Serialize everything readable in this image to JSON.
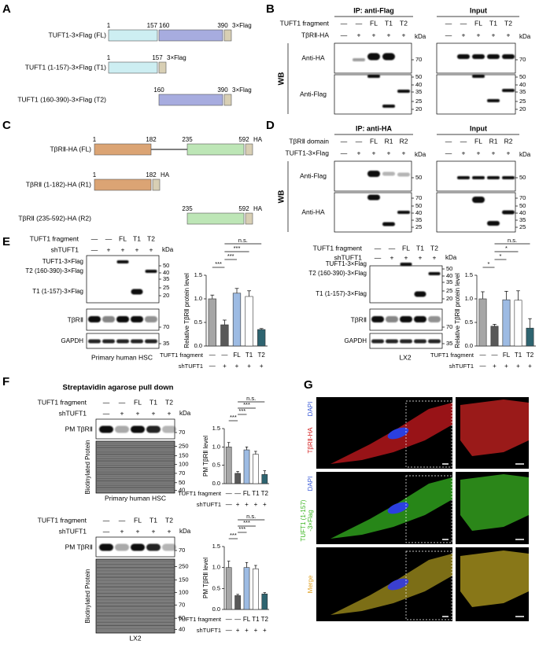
{
  "panel_labels": [
    "A",
    "B",
    "C",
    "D",
    "E",
    "F",
    "G"
  ],
  "A": {
    "constructs": [
      {
        "name": "TUFT1-3×Flag (FL)",
        "positions": [
          1,
          157,
          160,
          390
        ],
        "tag": "3×Flag"
      },
      {
        "name": "TUFT1 (1-157)-3×Flag (T1)",
        "positions": [
          1,
          157
        ],
        "tag": "3×Flag"
      },
      {
        "name": "TUFT1 (160-390)-3×Flag (T2)",
        "positions": [
          160,
          390
        ],
        "tag": "3×Flag"
      }
    ]
  },
  "B": {
    "ip_title": "IP: anti-Flag",
    "input_title": "Input",
    "kda": "kDa",
    "wb": "WB",
    "rows": [
      {
        "name": "TUFT1 fragment",
        "lanes": [
          "—",
          "—",
          "FL",
          "T1",
          "T2"
        ]
      },
      {
        "name": "TβRⅡ-HA",
        "lanes": [
          "—",
          "+",
          "+",
          "+",
          "+"
        ]
      }
    ],
    "blots": [
      {
        "name": "Anti-HA",
        "ip_markers": [
          70
        ],
        "input_markers": [
          70
        ]
      },
      {
        "name": "Anti-Flag",
        "ip_markers": [
          50,
          40,
          35,
          25,
          20
        ],
        "input_markers": [
          50,
          40,
          35,
          25,
          20
        ]
      }
    ]
  },
  "C": {
    "constructs": [
      {
        "name": "TβRⅡ-HA (FL)",
        "positions": [
          1,
          182,
          235,
          592
        ],
        "tag": "HA"
      },
      {
        "name": "TβRⅡ (1-182)-HA (R1)",
        "positions": [
          1,
          182
        ],
        "tag": "HA"
      },
      {
        "name": "TβRⅡ (235-592)-HA (R2)",
        "positions": [
          235,
          592
        ],
        "tag": "HA"
      }
    ]
  },
  "D": {
    "ip_title": "IP: anti-HA",
    "input_title": "Input",
    "kda": "kDa",
    "wb": "WB",
    "rows": [
      {
        "name": "TβRⅡ domain",
        "lanes": [
          "—",
          "—",
          "FL",
          "R1",
          "R2"
        ]
      },
      {
        "name": "TUFT1-3×Flag",
        "lanes": [
          "—",
          "+",
          "+",
          "+",
          "+"
        ]
      }
    ],
    "blots": [
      {
        "name": "Anti-Flag",
        "ip_markers": [
          50
        ],
        "input_markers": [
          50
        ]
      },
      {
        "name": "Anti-HA",
        "ip_markers": [
          70,
          50,
          40,
          35,
          25
        ],
        "input_markers": [
          70,
          50,
          40,
          35,
          25
        ]
      }
    ]
  },
  "E": {
    "blots": [
      {
        "rows": [
          {
            "name": "TUFT1 fragment",
            "lanes": [
              "—",
              "—",
              "FL",
              "T1",
              "T2"
            ]
          },
          {
            "name": "shTUFT1",
            "lanes": [
              "—",
              "+",
              "+",
              "+",
              "+"
            ]
          }
        ],
        "kda": "kDa",
        "bands": [
          "TUFT1-3×Flag",
          "T2 (160-390)-3×Flag",
          "T1 (1-157)-3×Flag"
        ],
        "flag_markers": [
          50,
          40,
          35,
          25,
          20
        ],
        "receptor": "TβRⅡ",
        "receptor_markers": [
          70
        ],
        "gapdh": "GAPDH",
        "gapdh_markers": [
          35
        ],
        "caption": "Primary human HSC"
      },
      {
        "rows": [
          {
            "name": "TUFT1 fragment",
            "lanes": [
              "—",
              "—",
              "FL",
              "T1",
              "T2"
            ]
          },
          {
            "name": "shTUFT1",
            "lanes": [
              "—",
              "+",
              "+",
              "+",
              "+"
            ]
          }
        ],
        "kda": "kDa",
        "bands": [
          "TUFT1-3×Flag",
          "T2 (160-390)-3×Flag",
          "T1 (1-157)-3×Flag"
        ],
        "flag_markers": [
          50,
          40,
          35,
          25,
          20
        ],
        "receptor": "TβRⅡ",
        "receptor_markers": [
          70
        ],
        "gapdh": "GAPDH",
        "gapdh_markers": [
          35
        ],
        "caption": "LX2"
      }
    ]
  },
  "F": {
    "title": "Streptavidin agarose pull down",
    "blots": [
      {
        "rows": [
          {
            "name": "TUFT1 fragment",
            "lanes": [
              "—",
              "—",
              "FL",
              "T1",
              "T2"
            ]
          },
          {
            "name": "shTUFT1",
            "lanes": [
              "—",
              "+",
              "+",
              "+",
              "+"
            ]
          }
        ],
        "kda": "kDa",
        "pm": "PM TβRⅡ",
        "pm_markers": [
          70
        ],
        "biotin": "Biotinylated Protein",
        "biotin_markers": [
          250,
          150,
          100,
          70,
          50,
          40
        ],
        "caption": "Primary human HSC"
      },
      {
        "rows": [
          {
            "name": "TUFT1 fragment",
            "lanes": [
              "—",
              "—",
              "FL",
              "T1",
              "T2"
            ]
          },
          {
            "name": "shTUFT1",
            "lanes": [
              "—",
              "+",
              "+",
              "+",
              "+"
            ]
          }
        ],
        "kda": "kDa",
        "pm": "PM TβRⅡ",
        "pm_markers": [
          70
        ],
        "biotin": "Biotinylated Protein",
        "biotin_markers": [
          250,
          150,
          100,
          70,
          50,
          40
        ],
        "caption": "LX2"
      }
    ]
  },
  "G": {
    "rows": [
      {
        "stain": "DAPI",
        "marker": [
          "TβRⅡ-HA"
        ]
      },
      {
        "stain": "DAPI",
        "marker": [
          "TUFT1 (1-157)",
          "-3×Flag"
        ]
      },
      {
        "marker": [
          "Merge"
        ]
      }
    ]
  },
  "chart_data": [
    {
      "type": "bar",
      "y_label": "Relative TβRⅡ protein level",
      "row_label": "TUFT1 fragment",
      "categories": [
        "—",
        "—",
        "FL",
        "T1",
        "T2"
      ],
      "sh_label": "shTUFT1",
      "sh_row": [
        "—",
        "+",
        "+",
        "+",
        "+"
      ],
      "values": [
        1.0,
        0.45,
        1.12,
        1.05,
        0.35
      ],
      "errors": [
        0.08,
        0.1,
        0.1,
        0.12,
        0.02
      ],
      "colors": [
        "#a6a6a6",
        "#595959",
        "#9dbbe3",
        "#ffffff",
        "#2e6470"
      ],
      "ylim": [
        0,
        1.5
      ],
      "yticks": [
        {
          "value": 0,
          "label": "0.0"
        },
        {
          "value": 0.5,
          "label": "0.5"
        },
        {
          "value": 1,
          "label": "1.0"
        },
        {
          "value": 1.5,
          "label": "1.5"
        }
      ],
      "significance": [
        "***",
        "***",
        "***",
        "n.s."
      ]
    },
    {
      "type": "bar",
      "y_label": "Relative TβRⅡ protein level",
      "row_label": "TUFT1 fragment",
      "categories": [
        "—",
        "—",
        "FL",
        "T1",
        "T2"
      ],
      "sh_label": "shTUFT1",
      "sh_row": [
        "—",
        "+",
        "+",
        "+",
        "+"
      ],
      "values": [
        1.0,
        0.42,
        0.98,
        0.97,
        0.38
      ],
      "errors": [
        0.15,
        0.04,
        0.18,
        0.2,
        0.2
      ],
      "colors": [
        "#a6a6a6",
        "#595959",
        "#9dbbe3",
        "#ffffff",
        "#2e6470"
      ],
      "ylim": [
        0,
        1.5
      ],
      "yticks": [
        {
          "value": 0,
          "label": "0.0"
        },
        {
          "value": 0.5,
          "label": "0.5"
        },
        {
          "value": 1,
          "label": "1.0"
        },
        {
          "value": 1.5,
          "label": "1.5"
        }
      ],
      "significance": [
        "*",
        "*",
        "*",
        "n.s."
      ]
    },
    {
      "type": "bar",
      "y_label": "PM TβRⅡ level",
      "row_label": "TUFT1 fragment",
      "categories": [
        "—",
        "—",
        "FL",
        "T1",
        "T2"
      ],
      "sh_label": "shTUFT1",
      "sh_row": [
        "—",
        "+",
        "+",
        "+",
        "+"
      ],
      "values": [
        1.0,
        0.28,
        0.92,
        0.8,
        0.25
      ],
      "errors": [
        0.12,
        0.05,
        0.08,
        0.08,
        0.1
      ],
      "colors": [
        "#a6a6a6",
        "#595959",
        "#9dbbe3",
        "#ffffff",
        "#2e6470"
      ],
      "ylim": [
        0,
        1.5
      ],
      "yticks": [
        {
          "value": 0,
          "label": "0.0"
        },
        {
          "value": 0.5,
          "label": "0.5"
        },
        {
          "value": 1,
          "label": "1.0"
        },
        {
          "value": 1.5,
          "label": "1.5"
        }
      ],
      "significance": [
        "***",
        "***",
        "***",
        "n.s."
      ]
    },
    {
      "type": "bar",
      "y_label": "PM TβRⅡ level",
      "row_label": "TUFT1 fragment",
      "categories": [
        "—",
        "—",
        "FL",
        "T1",
        "T2"
      ],
      "sh_label": "shTUFT1",
      "sh_row": [
        "—",
        "+",
        "+",
        "+",
        "+"
      ],
      "values": [
        1.0,
        0.33,
        1.0,
        0.97,
        0.37
      ],
      "errors": [
        0.15,
        0.03,
        0.12,
        0.08,
        0.03
      ],
      "colors": [
        "#a6a6a6",
        "#595959",
        "#9dbbe3",
        "#ffffff",
        "#2e6470"
      ],
      "ylim": [
        0,
        1.5
      ],
      "yticks": [
        {
          "value": 0,
          "label": "0.0"
        },
        {
          "value": 0.5,
          "label": "0.5"
        },
        {
          "value": 1,
          "label": "1.0"
        },
        {
          "value": 1.5,
          "label": "1.5"
        }
      ],
      "significance": [
        "***",
        "***",
        "***",
        "n.s."
      ]
    }
  ]
}
